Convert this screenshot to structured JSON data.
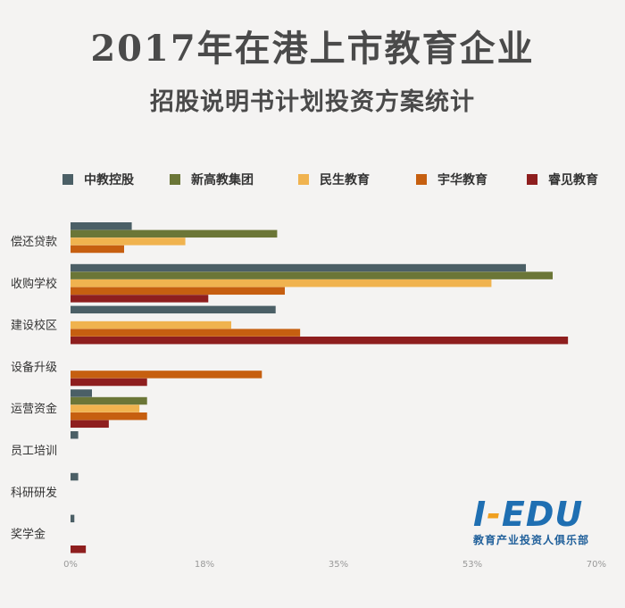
{
  "header": {
    "title": "2017年在港上市教育企业",
    "subtitle": "招股说明书计划投资方案统计"
  },
  "logo": {
    "text_prefix": "I",
    "text_dash": "-",
    "text_suffix": "EDU",
    "tagline": "教育产业投资人俱乐部"
  },
  "colors": {
    "中教控股": "#4b5f66",
    "新高教集团": "#6b7637",
    "民生教育": "#f0b34f",
    "宇华教育": "#c65f10",
    "睿见教育": "#8e1e1e"
  },
  "chart_data": {
    "type": "bar",
    "orientation": "horizontal",
    "categories": [
      "偿还贷款",
      "收购学校",
      "建设校区",
      "设备升级",
      "运营资金",
      "员工培训",
      "科研研发",
      "奖学金"
    ],
    "series": [
      {
        "name": "中教控股",
        "values": [
          8,
          59.5,
          26.8,
          0,
          2.8,
          1,
          1,
          0.5
        ]
      },
      {
        "name": "新高教集团",
        "values": [
          27,
          63,
          0,
          0,
          10,
          0,
          0,
          0
        ]
      },
      {
        "name": "民生教育",
        "values": [
          15,
          55,
          21,
          0,
          9,
          0,
          0,
          0
        ]
      },
      {
        "name": "宇华教育",
        "values": [
          7,
          28,
          30,
          25,
          10,
          0,
          0,
          0
        ]
      },
      {
        "name": "睿见教育",
        "values": [
          0,
          18,
          65,
          10,
          5,
          0,
          0,
          2
        ]
      }
    ],
    "xlim": [
      0,
      70
    ],
    "xticks": [
      "0%",
      "18%",
      "35%",
      "53%",
      "70%"
    ],
    "legend": "top",
    "grid": false
  }
}
